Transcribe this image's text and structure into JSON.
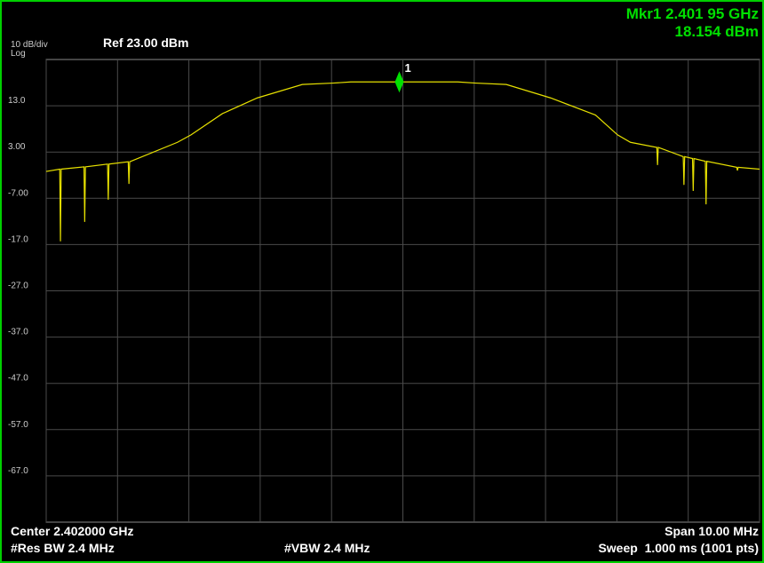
{
  "chart_data": {
    "type": "line",
    "scale_label": "10 dB/div",
    "scale_type": "Log",
    "ref_label": "Ref 23.00 dBm",
    "marker_readout": [
      "Mkr1 2.401 95 GHz",
      "18.154 dBm"
    ],
    "footer": {
      "center": "Center 2.402000 GHz",
      "span": "Span 10.00 MHz",
      "rbw": "#Res BW 2.4 MHz",
      "vbw": "#VBW 2.4 MHz",
      "sweep": "Sweep  1.000 ms (1001 pts)"
    },
    "xlim": [
      2.397,
      2.407
    ],
    "xticks": [
      2.397,
      2.398,
      2.399,
      2.4,
      2.401,
      2.402,
      2.403,
      2.404,
      2.405,
      2.406,
      2.407
    ],
    "ylim": [
      -77,
      23
    ],
    "yticks": [
      {
        "value": 13,
        "label": "13.0"
      },
      {
        "value": 3,
        "label": "3.00"
      },
      {
        "value": -7,
        "label": "-7.00"
      },
      {
        "value": -17,
        "label": "-17.0"
      },
      {
        "value": -27,
        "label": "-27.0"
      },
      {
        "value": -37,
        "label": "-37.0"
      },
      {
        "value": -47,
        "label": "-47.0"
      },
      {
        "value": -57,
        "label": "-57.0"
      },
      {
        "value": -67,
        "label": "-67.0"
      }
    ],
    "grid": true,
    "series": [
      {
        "color": "#e6e000",
        "x": [
          2.397,
          2.39719,
          2.3972,
          2.39721,
          2.39753,
          2.39754,
          2.39755,
          2.39786,
          2.39787,
          2.39788,
          2.39815,
          2.39816,
          2.39817,
          2.39884,
          2.39903,
          2.39947,
          2.39996,
          2.40059,
          2.40102,
          2.40127,
          2.40202,
          2.40277,
          2.40302,
          2.40345,
          2.40407,
          2.4047,
          2.40501,
          2.40519,
          2.40556,
          2.40557,
          2.40558,
          2.40593,
          2.40594,
          2.40595,
          2.40606,
          2.40607,
          2.40608,
          2.40624,
          2.40625,
          2.40626,
          2.40668,
          2.40669,
          2.4067,
          2.407
        ],
        "values": [
          -1.2,
          -0.7,
          -16.3,
          -0.7,
          -0.2,
          -12.1,
          -0.2,
          0.4,
          -7.3,
          0.4,
          0.9,
          -3.9,
          0.9,
          5.1,
          6.7,
          11.3,
          14.7,
          17.6,
          17.9,
          18.15,
          18.154,
          18.15,
          17.9,
          17.6,
          14.7,
          11.0,
          6.7,
          5.1,
          4.0,
          0.2,
          4.0,
          2.0,
          -4.1,
          2.0,
          1.6,
          -5.4,
          1.6,
          1.0,
          -8.3,
          1.0,
          -0.3,
          -1.0,
          -0.3,
          -0.7
        ]
      }
    ],
    "marker": {
      "label": "1",
      "x": 2.40195,
      "y": 18.154,
      "color": "#00e000"
    }
  }
}
